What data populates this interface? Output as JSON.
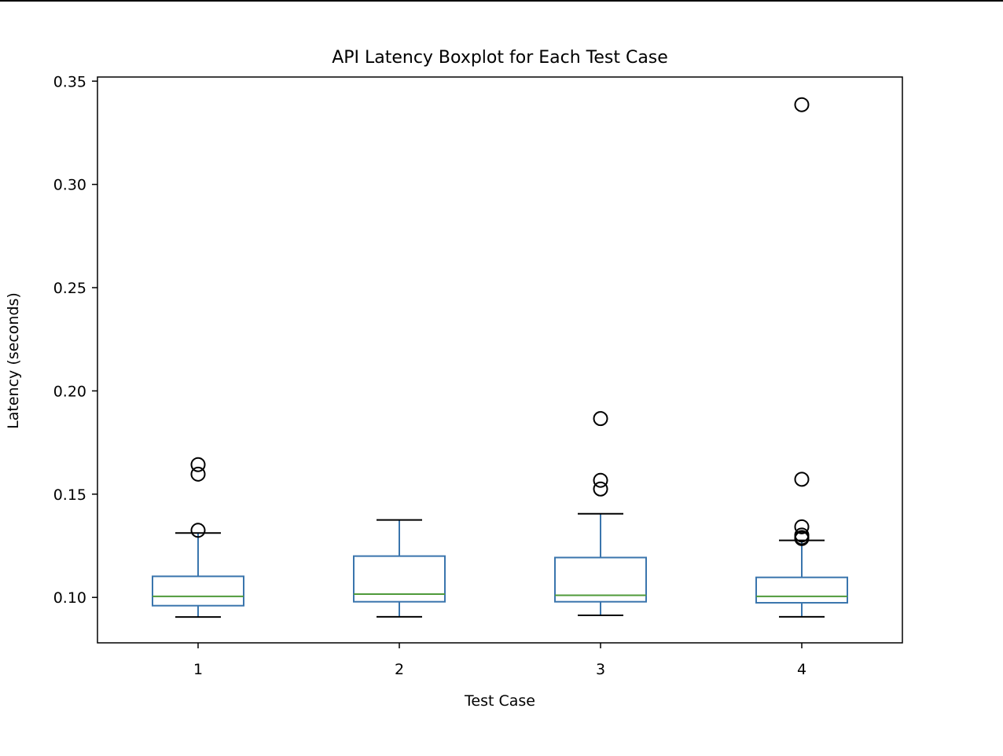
{
  "chart_data": {
    "type": "boxplot",
    "title": "API Latency Boxplot for Each Test Case",
    "xlabel": "Test Case",
    "ylabel": "Latency (seconds)",
    "ylim": [
      0.078,
      0.352
    ],
    "yticks": [
      0.1,
      0.15,
      0.2,
      0.25,
      0.3,
      0.35
    ],
    "ytick_labels": [
      "0.10",
      "0.15",
      "0.20",
      "0.25",
      "0.30",
      "0.35"
    ],
    "grid": false,
    "legend": "none",
    "colors": {
      "box": "#3a75ad",
      "median": "#4f9a3a",
      "whisker": "#3a75ad",
      "cap": "#000000",
      "flier": "#000000"
    },
    "categories": [
      "1",
      "2",
      "3",
      "4"
    ],
    "boxes": [
      {
        "category": "1",
        "whislo": 0.0905,
        "q1": 0.096,
        "median": 0.1005,
        "q3": 0.1102,
        "whishi": 0.1312,
        "fliers": [
          0.1325,
          0.1597,
          0.1643
        ]
      },
      {
        "category": "2",
        "whislo": 0.0906,
        "q1": 0.0979,
        "median": 0.1016,
        "q3": 0.12,
        "whishi": 0.1375,
        "fliers": []
      },
      {
        "category": "3",
        "whislo": 0.0913,
        "q1": 0.0979,
        "median": 0.101,
        "q3": 0.1193,
        "whishi": 0.1405,
        "fliers": [
          0.1525,
          0.1567,
          0.1866
        ]
      },
      {
        "category": "4",
        "whislo": 0.0906,
        "q1": 0.0974,
        "median": 0.1005,
        "q3": 0.1097,
        "whishi": 0.1276,
        "fliers": [
          0.1285,
          0.129,
          0.1302,
          0.1342,
          0.1572,
          0.3386
        ]
      }
    ]
  }
}
